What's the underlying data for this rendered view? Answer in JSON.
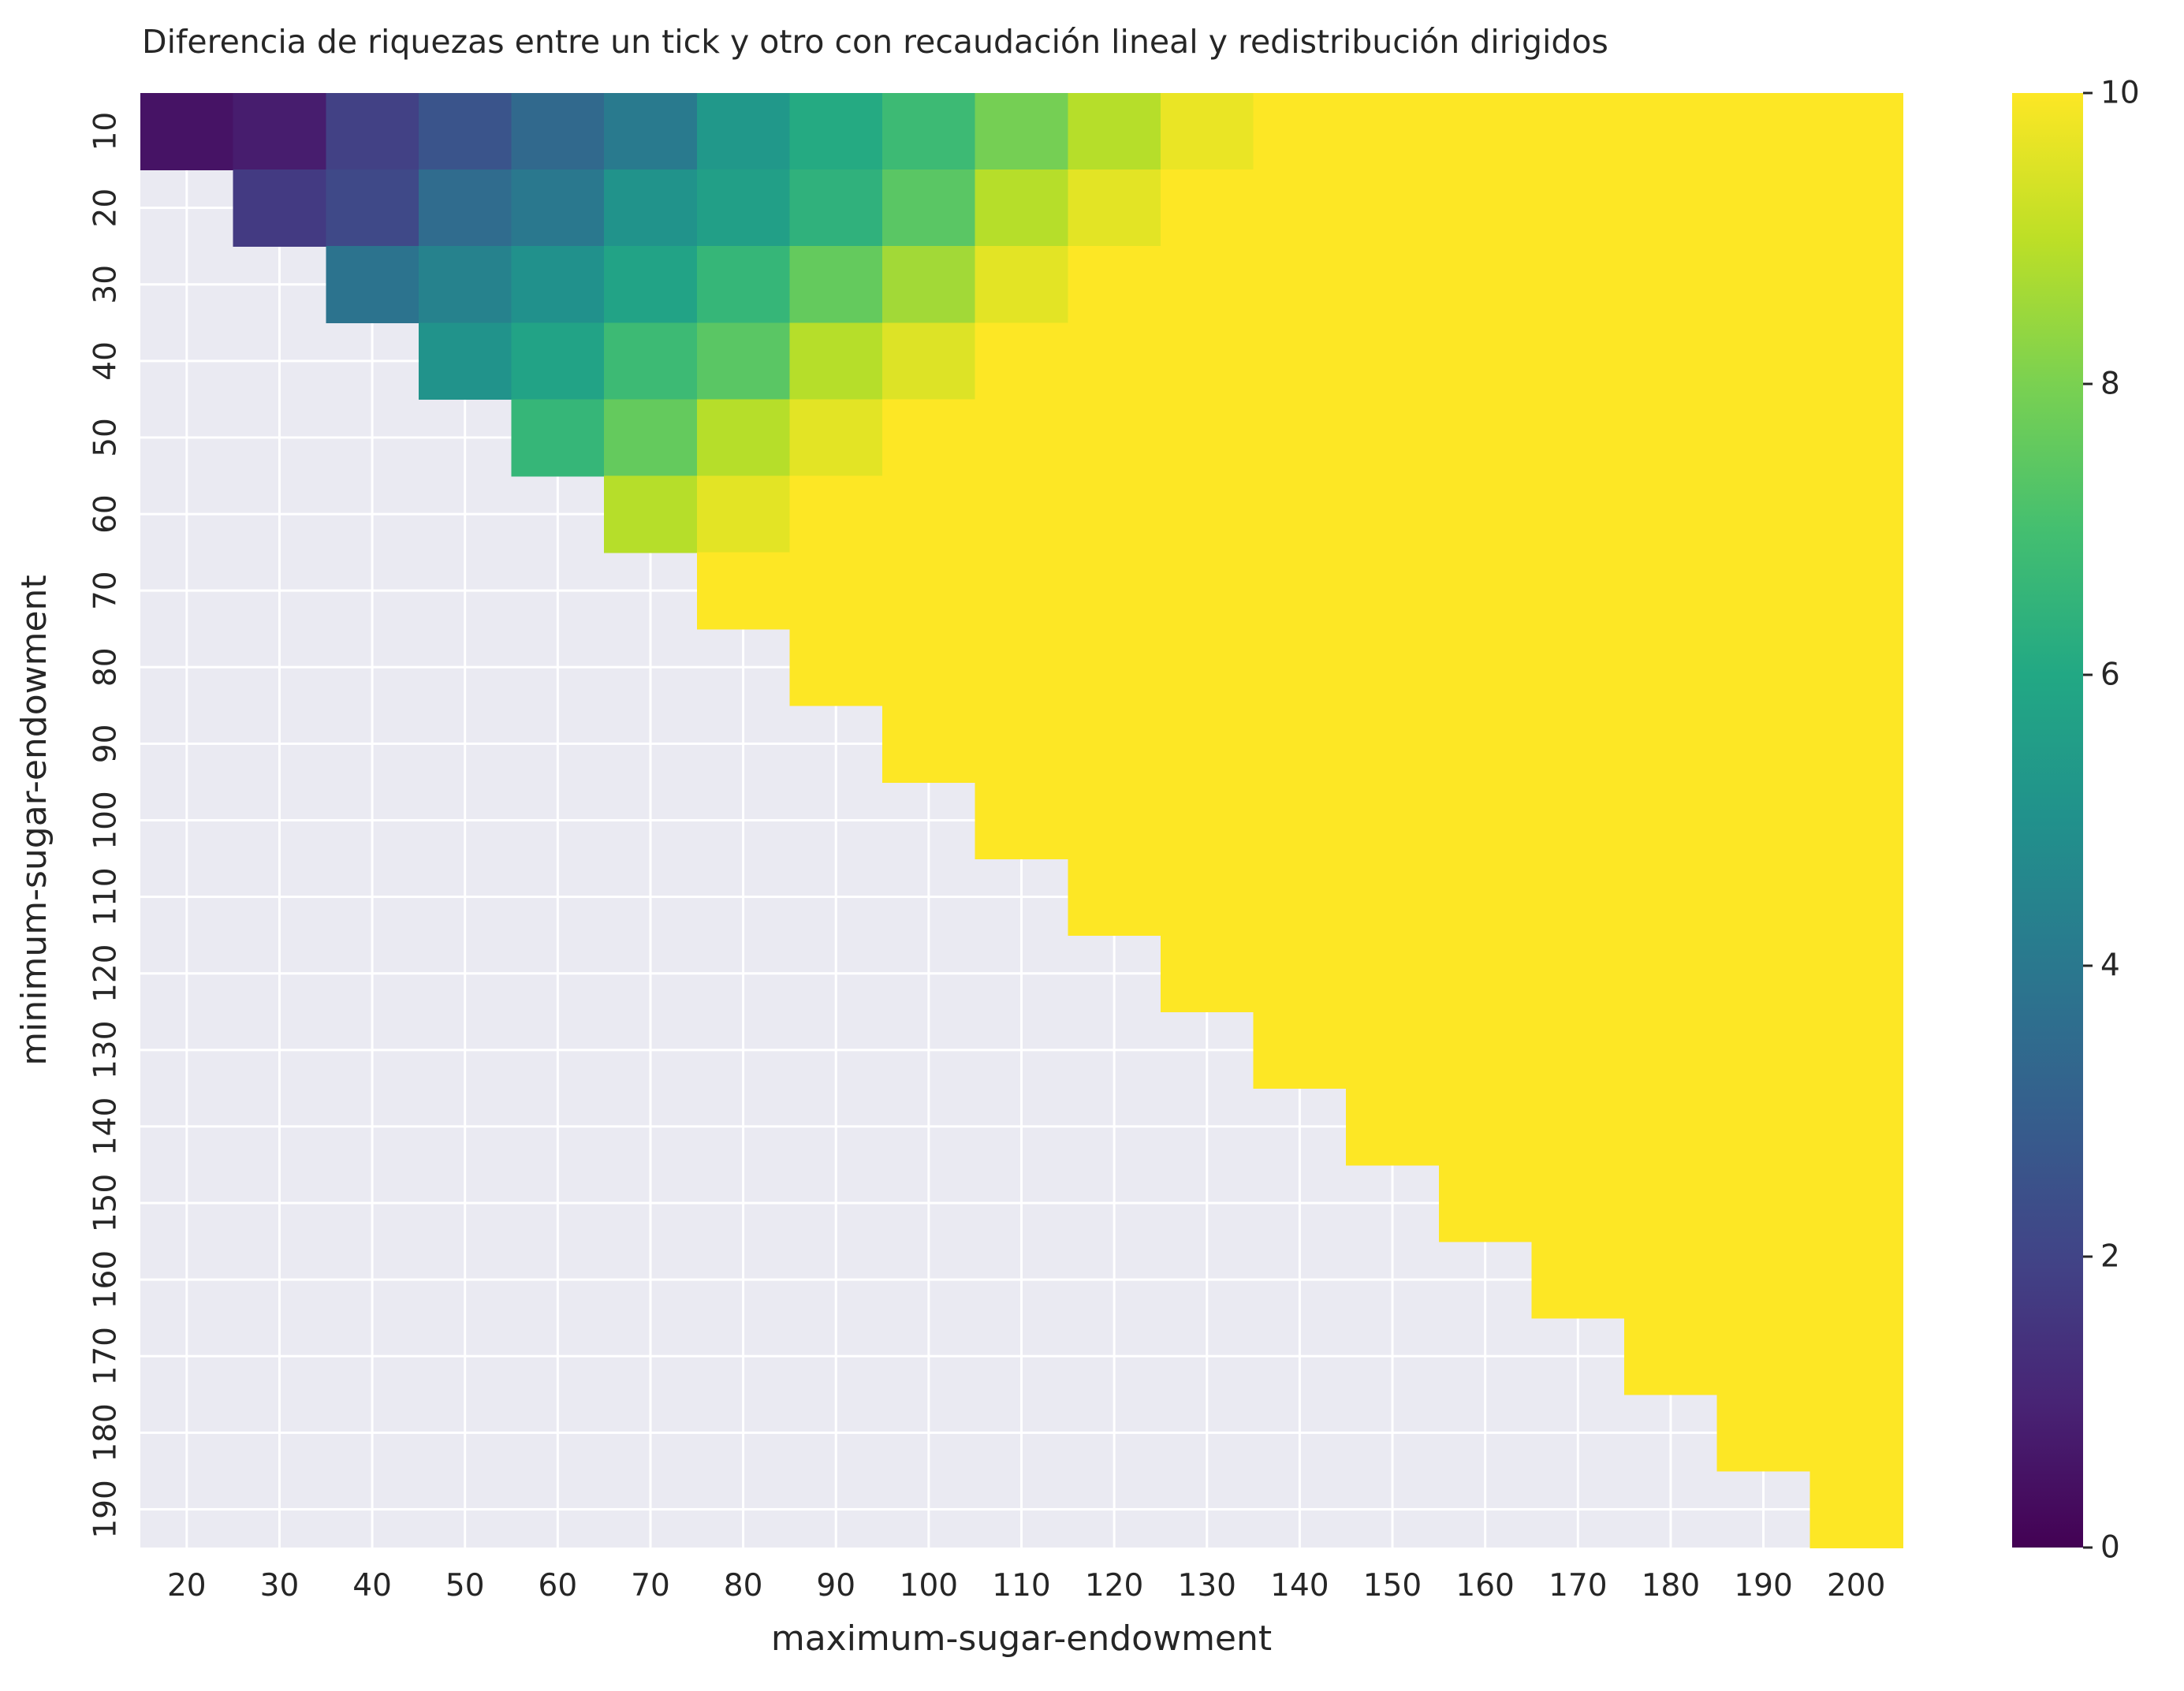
{
  "chart_data": {
    "type": "heatmap",
    "title": "Diferencia de riquezas entre un tick y otro con recaudación lineal y redistribución dirigidos",
    "xlabel": "maximum-sugar-endowment",
    "ylabel": "minimum-sugar-endowment",
    "x": [
      20,
      30,
      40,
      50,
      60,
      70,
      80,
      90,
      100,
      110,
      120,
      130,
      140,
      150,
      160,
      170,
      180,
      190,
      200
    ],
    "y": [
      10,
      20,
      30,
      40,
      50,
      60,
      70,
      80,
      90,
      100,
      110,
      120,
      130,
      140,
      150,
      160,
      170,
      180,
      190
    ],
    "x_tick_labels": [
      "20",
      "30",
      "40",
      "50",
      "60",
      "70",
      "80",
      "90",
      "100",
      "110",
      "120",
      "130",
      "140",
      "150",
      "160",
      "170",
      "180",
      "190",
      "200"
    ],
    "y_tick_labels": [
      "10",
      "20",
      "30",
      "40",
      "50",
      "60",
      "70",
      "80",
      "90",
      "100",
      "110",
      "120",
      "130",
      "140",
      "150",
      "160",
      "170",
      "180",
      "190"
    ],
    "values": [
      [
        0.5,
        0.8,
        1.9,
        2.6,
        3.4,
        4.1,
        5.3,
        6.1,
        6.8,
        7.9,
        8.9,
        9.7,
        10,
        10,
        10,
        10,
        10,
        10,
        10
      ],
      [
        null,
        1.7,
        2.2,
        3.5,
        4.0,
        5.1,
        5.6,
        6.4,
        7.4,
        8.9,
        9.6,
        10,
        10,
        10,
        10,
        10,
        10,
        10,
        10
      ],
      [
        null,
        null,
        3.8,
        4.4,
        5.0,
        5.8,
        6.6,
        7.6,
        8.6,
        9.6,
        10,
        10,
        10,
        10,
        10,
        10,
        10,
        10,
        10
      ],
      [
        null,
        null,
        null,
        5.1,
        5.8,
        6.8,
        7.4,
        8.9,
        9.5,
        10,
        10,
        10,
        10,
        10,
        10,
        10,
        10,
        10,
        10
      ],
      [
        null,
        null,
        null,
        null,
        6.6,
        7.6,
        8.9,
        9.6,
        10,
        10,
        10,
        10,
        10,
        10,
        10,
        10,
        10,
        10,
        10
      ],
      [
        null,
        null,
        null,
        null,
        null,
        8.9,
        9.6,
        10,
        10,
        10,
        10,
        10,
        10,
        10,
        10,
        10,
        10,
        10,
        10
      ],
      [
        null,
        null,
        null,
        null,
        null,
        null,
        10,
        10,
        10,
        10,
        10,
        10,
        10,
        10,
        10,
        10,
        10,
        10,
        10
      ],
      [
        null,
        null,
        null,
        null,
        null,
        null,
        null,
        10,
        10,
        10,
        10,
        10,
        10,
        10,
        10,
        10,
        10,
        10,
        10
      ],
      [
        null,
        null,
        null,
        null,
        null,
        null,
        null,
        null,
        10,
        10,
        10,
        10,
        10,
        10,
        10,
        10,
        10,
        10,
        10
      ],
      [
        null,
        null,
        null,
        null,
        null,
        null,
        null,
        null,
        null,
        10,
        10,
        10,
        10,
        10,
        10,
        10,
        10,
        10,
        10
      ],
      [
        null,
        null,
        null,
        null,
        null,
        null,
        null,
        null,
        null,
        null,
        10,
        10,
        10,
        10,
        10,
        10,
        10,
        10,
        10
      ],
      [
        null,
        null,
        null,
        null,
        null,
        null,
        null,
        null,
        null,
        null,
        null,
        10,
        10,
        10,
        10,
        10,
        10,
        10,
        10
      ],
      [
        null,
        null,
        null,
        null,
        null,
        null,
        null,
        null,
        null,
        null,
        null,
        null,
        10,
        10,
        10,
        10,
        10,
        10,
        10
      ],
      [
        null,
        null,
        null,
        null,
        null,
        null,
        null,
        null,
        null,
        null,
        null,
        null,
        null,
        10,
        10,
        10,
        10,
        10,
        10
      ],
      [
        null,
        null,
        null,
        null,
        null,
        null,
        null,
        null,
        null,
        null,
        null,
        null,
        null,
        null,
        10,
        10,
        10,
        10,
        10
      ],
      [
        null,
        null,
        null,
        null,
        null,
        null,
        null,
        null,
        null,
        null,
        null,
        null,
        null,
        null,
        null,
        10,
        10,
        10,
        10
      ],
      [
        null,
        null,
        null,
        null,
        null,
        null,
        null,
        null,
        null,
        null,
        null,
        null,
        null,
        null,
        null,
        null,
        10,
        10,
        10
      ],
      [
        null,
        null,
        null,
        null,
        null,
        null,
        null,
        null,
        null,
        null,
        null,
        null,
        null,
        null,
        null,
        null,
        null,
        10,
        10
      ],
      [
        null,
        null,
        null,
        null,
        null,
        null,
        null,
        null,
        null,
        null,
        null,
        null,
        null,
        null,
        null,
        null,
        null,
        null,
        10
      ]
    ],
    "colorscale": "viridis",
    "vmin": 0,
    "vmax": 10,
    "colorbar_ticks": [
      0,
      2,
      4,
      6,
      8,
      10
    ],
    "colorbar_tick_labels": [
      "0",
      "2",
      "4",
      "6",
      "8",
      "10"
    ],
    "background_color": "#eaeaf2",
    "grid": true
  }
}
